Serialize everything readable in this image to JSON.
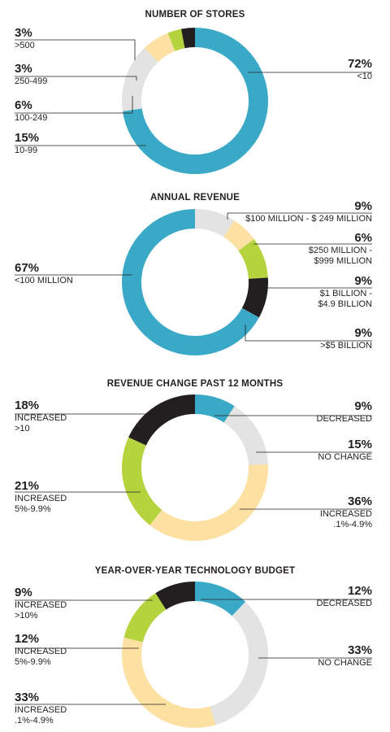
{
  "colors": {
    "teal": "#3aa9c7",
    "black": "#231f20",
    "green": "#b5d33d",
    "yellow": "#fde1a3",
    "gray": "#e3e3e3"
  },
  "chart_data": [
    {
      "type": "pie",
      "title": "NUMBER OF STORES",
      "slices": [
        {
          "pct": "72%",
          "label": "<10",
          "value": 72,
          "color": "#3aa9c7"
        },
        {
          "pct": "15%",
          "label": "10-99",
          "value": 15,
          "color": "#e3e3e3"
        },
        {
          "pct": "6%",
          "label": "100-249",
          "value": 6,
          "color": "#fde1a3"
        },
        {
          "pct": "3%",
          "label": "250-499",
          "value": 3,
          "color": "#b5d33d"
        },
        {
          "pct": "3%",
          "label": ">500",
          "value": 3,
          "color": "#231f20"
        }
      ]
    },
    {
      "type": "pie",
      "title": "ANNUAL REVENUE",
      "slices": [
        {
          "pct": "9%",
          "label": "$100 MILLION - $ 249 MILLION",
          "value": 9,
          "color": "#e3e3e3"
        },
        {
          "pct": "6%",
          "label": "$250 MILLION -\n$999 MILLION",
          "value": 6,
          "color": "#fde1a3"
        },
        {
          "pct": "9%",
          "label": "$1 BILLION -\n$4.9 BILLION",
          "value": 9,
          "color": "#b5d33d"
        },
        {
          "pct": "9%",
          "label": ">$5 BILLION",
          "value": 9,
          "color": "#231f20"
        },
        {
          "pct": "67%",
          "label": "<100 MILLION",
          "value": 67,
          "color": "#3aa9c7"
        }
      ]
    },
    {
      "type": "pie",
      "title": "REVENUE CHANGE PAST 12 MONTHS",
      "slices": [
        {
          "pct": "9%",
          "label": "DECREASED",
          "value": 9,
          "color": "#3aa9c7"
        },
        {
          "pct": "15%",
          "label": "NO CHANGE",
          "value": 15,
          "color": "#e3e3e3"
        },
        {
          "pct": "36%",
          "label": "INCREASED\n.1%-4.9%",
          "value": 36,
          "color": "#fde1a3"
        },
        {
          "pct": "21%",
          "label": "INCREASED\n5%-9.9%",
          "value": 21,
          "color": "#b5d33d"
        },
        {
          "pct": "18%",
          "label": "INCREASED\n>10",
          "value": 18,
          "color": "#231f20"
        }
      ]
    },
    {
      "type": "pie",
      "title": "YEAR-OVER-YEAR TECHNOLOGY BUDGET",
      "slices": [
        {
          "pct": "12%",
          "label": "DECREASED",
          "value": 12,
          "color": "#3aa9c7"
        },
        {
          "pct": "33%",
          "label": "NO CHANGE",
          "value": 33,
          "color": "#e3e3e3"
        },
        {
          "pct": "33%",
          "label": "INCREASED\n.1%-4.9%",
          "value": 33,
          "color": "#fde1a3"
        },
        {
          "pct": "12%",
          "label": "INCREASED\n5%-9.9%",
          "value": 12,
          "color": "#b5d33d"
        },
        {
          "pct": "9%",
          "label": "INCREASED\n>10%",
          "value": 9,
          "color": "#231f20"
        }
      ]
    }
  ]
}
